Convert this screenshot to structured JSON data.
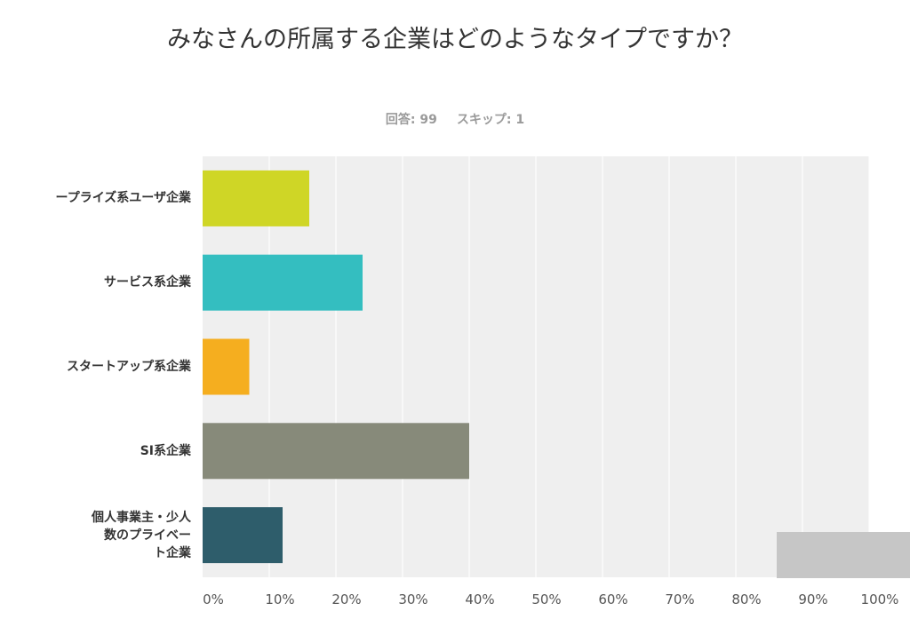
{
  "page": {
    "title": "みなさんの所属する企業はどのようなタイプですか？",
    "summary": {
      "answered": "回答: 99",
      "skipped": "スキップ: 1"
    }
  },
  "chart_data": {
    "type": "bar",
    "orientation": "horizontal",
    "categories": [
      "ープライズ系ユーザ企業",
      "サービス系企業",
      "スタートアップ系企業",
      "SI系企業",
      "個人事業主・少人\n数のプライベー\nト企業"
    ],
    "values": [
      16,
      24,
      7,
      40,
      12
    ],
    "colors": [
      "#cfd626",
      "#34bec0",
      "#f5ae1f",
      "#878a7a",
      "#2e5d6b"
    ],
    "value_unit": "percent",
    "xlim": [
      0,
      100
    ],
    "xticks": [
      "0%",
      "10%",
      "20%",
      "30%",
      "40%",
      "50%",
      "60%",
      "70%",
      "80%",
      "90%",
      "100%"
    ],
    "grid": true,
    "plot_background": "#efefef",
    "gridline_color": "#ffffff"
  }
}
